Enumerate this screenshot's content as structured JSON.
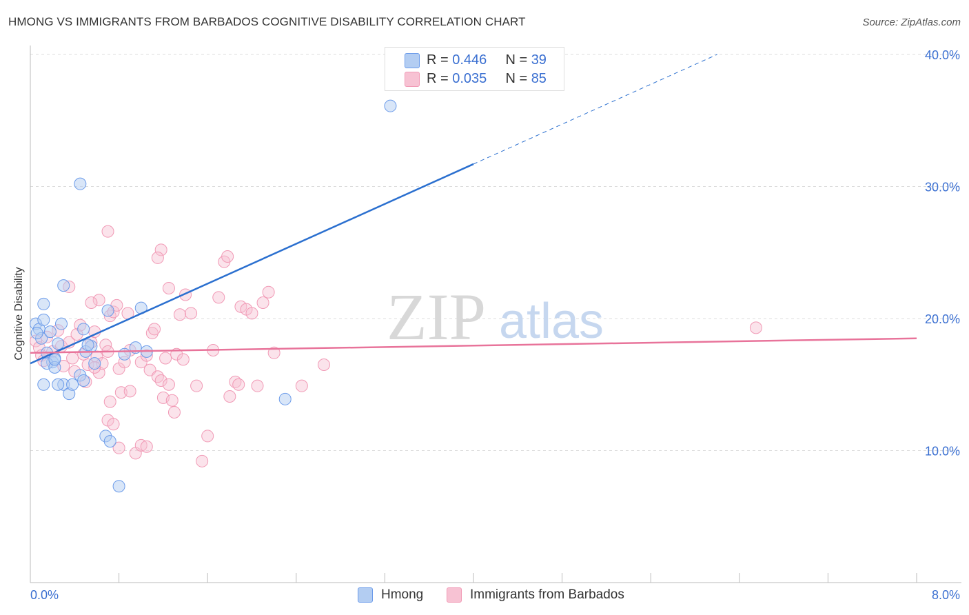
{
  "title": "HMONG VS IMMIGRANTS FROM BARBADOS COGNITIVE DISABILITY CORRELATION CHART",
  "source": "Source: ZipAtlas.com",
  "watermark": {
    "zip": "ZIP",
    "atlas": "atlas"
  },
  "legend": {
    "rows": [
      {
        "r_label": "R = ",
        "r_value": "0.446",
        "n_label": "N = ",
        "n_value": "39"
      },
      {
        "r_label": "R = ",
        "r_value": "0.035",
        "n_label": "N = ",
        "n_value": "85"
      }
    ]
  },
  "chart_data": {
    "type": "scatter",
    "title": "HMONG VS IMMIGRANTS FROM BARBADOS COGNITIVE DISABILITY CORRELATION CHART",
    "xlabel": "",
    "ylabel": "Cognitive Disability",
    "xlim": [
      0,
      8
    ],
    "ylim": [
      0,
      40
    ],
    "x_tick_labels": [
      "0.0%",
      "8.0%"
    ],
    "y_tick_labels": [
      "10.0%",
      "20.0%",
      "30.0%",
      "40.0%"
    ],
    "y_ticks": [
      10,
      20,
      30,
      40
    ],
    "grid": true,
    "legend_position": "top-center",
    "colors": {
      "hmong": "#6b9bea",
      "barbados": "#f199b5",
      "hmong_line": "#2a6fcf",
      "barbados_line": "#e8739a",
      "axis_label": "#3a6fd1"
    },
    "series": [
      {
        "name": "Hmong",
        "r": 0.446,
        "n": 39,
        "trend": {
          "x0": 0,
          "y0": 16.6,
          "x1": 4.0,
          "y1": 31.7,
          "dash_x1": 6.2,
          "dash_y1": 40.0
        },
        "points": [
          [
            0.05,
            19.6
          ],
          [
            0.08,
            19.2
          ],
          [
            0.1,
            18.5
          ],
          [
            0.12,
            19.9
          ],
          [
            0.06,
            18.9
          ],
          [
            0.15,
            17.4
          ],
          [
            0.18,
            19.0
          ],
          [
            0.2,
            16.7
          ],
          [
            0.22,
            17.0
          ],
          [
            0.25,
            18.1
          ],
          [
            0.28,
            19.6
          ],
          [
            0.12,
            21.1
          ],
          [
            0.15,
            16.6
          ],
          [
            0.22,
            16.3
          ],
          [
            0.3,
            15.0
          ],
          [
            0.25,
            15.0
          ],
          [
            0.35,
            14.3
          ],
          [
            0.38,
            15.0
          ],
          [
            0.45,
            15.7
          ],
          [
            0.48,
            15.3
          ],
          [
            0.5,
            17.5
          ],
          [
            0.55,
            17.9
          ],
          [
            0.58,
            16.6
          ],
          [
            0.48,
            19.2
          ],
          [
            0.52,
            18.0
          ],
          [
            0.7,
            20.6
          ],
          [
            0.68,
            11.1
          ],
          [
            0.72,
            10.7
          ],
          [
            0.8,
            7.3
          ],
          [
            0.45,
            30.2
          ],
          [
            0.3,
            22.5
          ],
          [
            0.85,
            17.3
          ],
          [
            0.95,
            17.8
          ],
          [
            1.0,
            20.8
          ],
          [
            1.05,
            17.5
          ],
          [
            0.12,
            15.0
          ],
          [
            2.3,
            13.9
          ],
          [
            0.22,
            16.9
          ],
          [
            3.25,
            36.1
          ]
        ]
      },
      {
        "name": "Immigrants from Barbados",
        "r": 0.035,
        "n": 85,
        "trend": {
          "x0": 0,
          "y0": 17.4,
          "x1": 8.0,
          "y1": 18.5
        },
        "points": [
          [
            0.05,
            18.3
          ],
          [
            0.08,
            17.8
          ],
          [
            0.1,
            17.2
          ],
          [
            0.12,
            16.8
          ],
          [
            0.15,
            18.6
          ],
          [
            0.2,
            17.5
          ],
          [
            0.25,
            19.1
          ],
          [
            0.28,
            17.9
          ],
          [
            0.3,
            16.4
          ],
          [
            0.35,
            18.2
          ],
          [
            0.38,
            17.0
          ],
          [
            0.4,
            16.0
          ],
          [
            0.42,
            18.8
          ],
          [
            0.45,
            19.5
          ],
          [
            0.48,
            17.3
          ],
          [
            0.5,
            15.2
          ],
          [
            0.52,
            16.5
          ],
          [
            0.55,
            18.2
          ],
          [
            0.58,
            19.0
          ],
          [
            0.6,
            17.1
          ],
          [
            0.62,
            15.9
          ],
          [
            0.65,
            16.6
          ],
          [
            0.68,
            18.0
          ],
          [
            0.7,
            17.5
          ],
          [
            0.72,
            20.2
          ],
          [
            0.75,
            20.5
          ],
          [
            0.78,
            21.0
          ],
          [
            0.8,
            16.2
          ],
          [
            0.82,
            14.4
          ],
          [
            0.85,
            16.7
          ],
          [
            0.88,
            20.4
          ],
          [
            0.9,
            17.6
          ],
          [
            0.62,
            21.4
          ],
          [
            0.55,
            21.2
          ],
          [
            0.35,
            22.4
          ],
          [
            0.7,
            12.3
          ],
          [
            0.72,
            13.7
          ],
          [
            0.75,
            12.0
          ],
          [
            0.8,
            10.2
          ],
          [
            0.9,
            14.5
          ],
          [
            0.95,
            9.8
          ],
          [
            1.0,
            16.7
          ],
          [
            1.05,
            17.2
          ],
          [
            1.08,
            16.1
          ],
          [
            1.1,
            18.9
          ],
          [
            1.12,
            19.2
          ],
          [
            1.15,
            15.6
          ],
          [
            1.18,
            15.3
          ],
          [
            1.2,
            14.0
          ],
          [
            1.22,
            17.0
          ],
          [
            1.25,
            15.0
          ],
          [
            1.28,
            13.8
          ],
          [
            1.3,
            12.9
          ],
          [
            1.32,
            17.3
          ],
          [
            1.35,
            20.3
          ],
          [
            1.38,
            16.9
          ],
          [
            1.4,
            21.8
          ],
          [
            1.45,
            20.4
          ],
          [
            1.5,
            14.9
          ],
          [
            1.55,
            9.2
          ],
          [
            1.6,
            11.1
          ],
          [
            1.65,
            17.6
          ],
          [
            1.7,
            21.6
          ],
          [
            1.75,
            24.3
          ],
          [
            1.78,
            24.7
          ],
          [
            1.8,
            14.1
          ],
          [
            1.85,
            15.2
          ],
          [
            1.88,
            15.0
          ],
          [
            1.9,
            20.9
          ],
          [
            1.95,
            20.7
          ],
          [
            2.0,
            20.4
          ],
          [
            2.05,
            14.9
          ],
          [
            2.1,
            21.2
          ],
          [
            2.15,
            22.0
          ],
          [
            2.2,
            17.4
          ],
          [
            2.45,
            14.9
          ],
          [
            2.65,
            16.5
          ],
          [
            1.18,
            25.2
          ],
          [
            1.15,
            24.6
          ],
          [
            0.7,
            26.6
          ],
          [
            1.0,
            10.4
          ],
          [
            1.05,
            10.3
          ],
          [
            1.25,
            22.3
          ],
          [
            6.55,
            19.3
          ],
          [
            0.58,
            16.3
          ]
        ]
      }
    ]
  },
  "bottom_legend": {
    "hmong": "Hmong",
    "barbados": "Immigrants from Barbados"
  }
}
